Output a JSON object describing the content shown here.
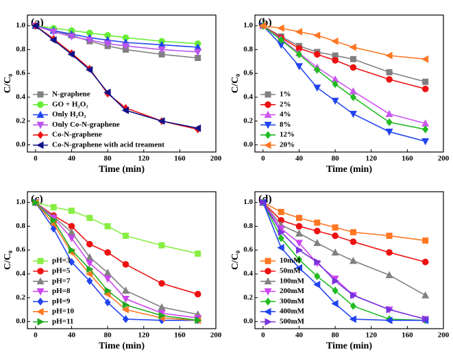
{
  "chart_data": [
    {
      "type": "line",
      "panel_label": "(a)",
      "xlabel": "Time (min)",
      "ylabel": "C/C₀",
      "legend": "lower left",
      "x": [
        0,
        20,
        40,
        60,
        80,
        100,
        140,
        180
      ],
      "xlim": [
        -9,
        200
      ],
      "xticks": [
        0,
        40,
        80,
        120,
        160,
        200
      ],
      "ylim": [
        -0.06,
        1.09
      ],
      "yticks": [
        {
          "value": 0,
          "label": "0.0"
        },
        0.2,
        0.4,
        0.6,
        0.8,
        {
          "value": 1,
          "label": "1.0"
        }
      ],
      "series": [
        {
          "name": "N-graphene",
          "color": "#808080",
          "marker": "square",
          "values": [
            1,
            0.96,
            0.92,
            0.87,
            0.83,
            0.8,
            0.76,
            0.73
          ]
        },
        {
          "name": "GO + H₂O₂",
          "color": "#66ee33",
          "marker": "circle",
          "values": [
            1,
            0.98,
            0.96,
            0.94,
            0.92,
            0.9,
            0.87,
            0.85
          ]
        },
        {
          "name": "Only H₂O₂",
          "color": "#2244ee",
          "marker": "up",
          "values": [
            1,
            0.96,
            0.93,
            0.9,
            0.88,
            0.86,
            0.84,
            0.82
          ]
        },
        {
          "name": "Only Co-N-graphene",
          "color": "#bb55ee",
          "marker": "down",
          "values": [
            1,
            0.95,
            0.91,
            0.88,
            0.85,
            0.83,
            0.8,
            0.78
          ]
        },
        {
          "name": "Co-N-graphene",
          "color": "#ee1111",
          "marker": "diamond",
          "values": [
            1,
            0.89,
            0.77,
            0.64,
            0.43,
            0.31,
            0.2,
            0.13
          ]
        },
        {
          "name": "Co-N-graphene with acid treament",
          "color": "#111188",
          "marker": "left",
          "values": [
            1,
            0.88,
            0.76,
            0.63,
            0.44,
            0.29,
            0.2,
            0.14
          ]
        }
      ]
    },
    {
      "type": "line",
      "panel_label": "(b)",
      "xlabel": "Time (min)",
      "ylabel": "C/C₀",
      "legend": "lower left",
      "x": [
        0,
        20,
        40,
        60,
        80,
        100,
        140,
        180
      ],
      "xlim": [
        -9,
        200
      ],
      "xticks": [
        0,
        40,
        80,
        120,
        160,
        200
      ],
      "ylim": [
        -0.06,
        1.09
      ],
      "yticks": [
        {
          "value": 0,
          "label": "0.0"
        },
        0.2,
        0.4,
        0.6,
        0.8,
        {
          "value": 1,
          "label": "1.0"
        }
      ],
      "series": [
        {
          "name": "1%",
          "color": "#808080",
          "marker": "square",
          "values": [
            1,
            0.91,
            0.83,
            0.78,
            0.75,
            0.72,
            0.61,
            0.53
          ]
        },
        {
          "name": "2%",
          "color": "#ee1111",
          "marker": "circle",
          "values": [
            1,
            0.9,
            0.81,
            0.76,
            0.71,
            0.65,
            0.55,
            0.47
          ]
        },
        {
          "name": "4%",
          "color": "#cc55ee",
          "marker": "up",
          "values": [
            1,
            0.89,
            0.77,
            0.65,
            0.55,
            0.45,
            0.26,
            0.18
          ]
        },
        {
          "name": "8%",
          "color": "#2244ee",
          "marker": "down",
          "values": [
            1,
            0.84,
            0.66,
            0.48,
            0.37,
            0.26,
            0.11,
            0.03
          ]
        },
        {
          "name": "12%",
          "color": "#22bb22",
          "marker": "diamond",
          "values": [
            1,
            0.88,
            0.76,
            0.63,
            0.51,
            0.4,
            0.19,
            0.13
          ]
        },
        {
          "name": "20%",
          "color": "#ff7722",
          "marker": "left",
          "values": [
            1,
            0.98,
            0.95,
            0.92,
            0.87,
            0.82,
            0.75,
            0.72
          ]
        }
      ]
    },
    {
      "type": "line",
      "panel_label": "(c)",
      "xlabel": "Time (min)",
      "ylabel": "C/C₀",
      "legend": "lower left",
      "x": [
        0,
        20,
        40,
        60,
        80,
        100,
        140,
        180
      ],
      "xlim": [
        -9,
        200
      ],
      "xticks": [
        0,
        40,
        80,
        120,
        160,
        200
      ],
      "ylim": [
        -0.06,
        1.09
      ],
      "yticks": [
        {
          "value": 0,
          "label": "0.0"
        },
        0.2,
        0.4,
        0.6,
        0.8,
        {
          "value": 1,
          "label": "1.0"
        }
      ],
      "series": [
        {
          "name": "pH=3",
          "color": "#88ee44",
          "marker": "square",
          "values": [
            1,
            0.96,
            0.93,
            0.87,
            0.8,
            0.72,
            0.64,
            0.57
          ]
        },
        {
          "name": "pH=5",
          "color": "#ee1111",
          "marker": "circle",
          "values": [
            1,
            0.89,
            0.8,
            0.65,
            0.58,
            0.48,
            0.32,
            0.23
          ]
        },
        {
          "name": "pH=7",
          "color": "#808080",
          "marker": "up",
          "values": [
            1,
            0.88,
            0.75,
            0.54,
            0.41,
            0.26,
            0.12,
            0.06
          ]
        },
        {
          "name": "pH=8",
          "color": "#cc44ee",
          "marker": "down",
          "values": [
            1,
            0.87,
            0.7,
            0.49,
            0.36,
            0.19,
            0.07,
            0.03
          ]
        },
        {
          "name": "pH=9",
          "color": "#2244ee",
          "marker": "diamond",
          "values": [
            1,
            0.78,
            0.5,
            0.34,
            0.16,
            0.02,
            0.01,
            0.01
          ]
        },
        {
          "name": "pH=10",
          "color": "#ff7722",
          "marker": "left",
          "values": [
            1,
            0.82,
            0.58,
            0.4,
            0.23,
            0.1,
            0.03,
            0.01
          ]
        },
        {
          "name": "pH=11",
          "color": "#22aa22",
          "marker": "right",
          "values": [
            1,
            0.85,
            0.6,
            0.44,
            0.26,
            0.14,
            0.05,
            0.01
          ]
        }
      ]
    },
    {
      "type": "line",
      "panel_label": "(d)",
      "xlabel": "Time (min)",
      "ylabel": "C/C₀",
      "legend": "lower left",
      "x": [
        0,
        20,
        40,
        60,
        80,
        100,
        140,
        180
      ],
      "xlim": [
        -9,
        200
      ],
      "xticks": [
        0,
        40,
        80,
        120,
        160,
        200
      ],
      "ylim": [
        -0.06,
        1.09
      ],
      "yticks": [
        {
          "value": 0,
          "label": "0.0"
        },
        0.2,
        0.4,
        0.6,
        0.8,
        {
          "value": 1,
          "label": "1.0"
        }
      ],
      "series": [
        {
          "name": "10mM",
          "color": "#ff7722",
          "marker": "square",
          "values": [
            1,
            0.92,
            0.87,
            0.83,
            0.79,
            0.75,
            0.72,
            0.68
          ]
        },
        {
          "name": "50mM",
          "color": "#ee1111",
          "marker": "circle",
          "values": [
            1,
            0.85,
            0.8,
            0.76,
            0.72,
            0.67,
            0.58,
            0.5
          ]
        },
        {
          "name": "100mM",
          "color": "#808080",
          "marker": "up",
          "values": [
            1,
            0.81,
            0.74,
            0.66,
            0.58,
            0.51,
            0.39,
            0.22
          ]
        },
        {
          "name": "200mM",
          "color": "#cc44ee",
          "marker": "down",
          "values": [
            1,
            0.78,
            0.66,
            0.49,
            0.36,
            0.22,
            0.1,
            0.02
          ]
        },
        {
          "name": "300mM",
          "color": "#22bb22",
          "marker": "diamond",
          "values": [
            1,
            0.7,
            0.52,
            0.38,
            0.26,
            0.13,
            0.02,
            0.01
          ]
        },
        {
          "name": "400mM",
          "color": "#2244ee",
          "marker": "left",
          "values": [
            1,
            0.62,
            0.45,
            0.31,
            0.15,
            0.02,
            0.01,
            0.01
          ]
        },
        {
          "name": "500mM",
          "color": "#7733dd",
          "marker": "right",
          "values": [
            1,
            0.75,
            0.6,
            0.5,
            0.34,
            0.22,
            0.1,
            0.02
          ]
        }
      ]
    }
  ]
}
